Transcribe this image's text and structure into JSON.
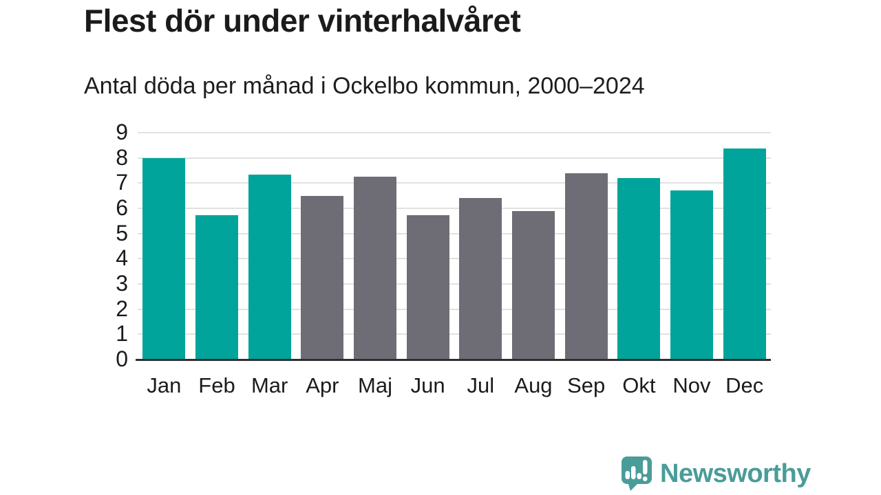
{
  "title": "Flest dör under vinterhalvåret",
  "subtitle": "Antal döda per månad i Ockelbo kommun, 2000–2024",
  "footer": {
    "brand": "Newsworthy",
    "logo_icon_name": "newsworthy-speech-bubble-bar-chart-icon"
  },
  "colors": {
    "winter_bar": "#00A49B",
    "summer_bar": "#6E6D75",
    "axis_line": "#2E2E2E",
    "gridline": "#E1E1E1",
    "text": "#1B1B1B",
    "logo": "#4A9C99",
    "background": "#FFFFFF"
  },
  "chart_data": {
    "type": "bar",
    "title": "Flest dör under vinterhalvåret",
    "subtitle": "Antal döda per månad i Ockelbo kommun, 2000–2024",
    "categories": [
      "Jan",
      "Feb",
      "Mar",
      "Apr",
      "Maj",
      "Jun",
      "Jul",
      "Aug",
      "Sep",
      "Okt",
      "Nov",
      "Dec"
    ],
    "values": [
      7.98,
      5.73,
      7.33,
      6.5,
      7.25,
      5.73,
      6.41,
      5.89,
      7.38,
      7.21,
      6.71,
      8.36
    ],
    "bar_seasons": [
      "winter",
      "winter",
      "winter",
      "summer",
      "summer",
      "summer",
      "summer",
      "summer",
      "summer",
      "winter",
      "winter",
      "winter"
    ],
    "xlabel": "",
    "ylabel": "",
    "ylim": [
      0,
      9
    ],
    "yticks": [
      0,
      1,
      2,
      3,
      4,
      5,
      6,
      7,
      8,
      9
    ],
    "grid": true,
    "legend": false
  }
}
